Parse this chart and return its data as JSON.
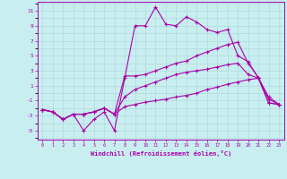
{
  "xlabel": "Windchill (Refroidissement éolien,°C)",
  "background_color": "#c8eef0",
  "grid_color": "#b0d8dc",
  "line_color": "#aa00aa",
  "x_values": [
    0,
    1,
    2,
    3,
    4,
    5,
    6,
    7,
    8,
    9,
    10,
    11,
    12,
    13,
    14,
    15,
    16,
    17,
    18,
    19,
    20,
    21,
    22,
    23
  ],
  "line1": [
    -2.2,
    -2.5,
    -3.5,
    -2.8,
    -5.0,
    -3.5,
    -2.5,
    -5.0,
    2.0,
    9.0,
    9.0,
    11.5,
    9.2,
    9.0,
    10.2,
    9.5,
    8.5,
    8.1,
    8.5,
    5.0,
    4.2,
    2.0,
    -1.3,
    -1.5
  ],
  "line2": [
    -2.2,
    -2.5,
    -3.5,
    -2.8,
    -2.8,
    -2.5,
    -2.0,
    -2.8,
    2.3,
    2.3,
    2.5,
    3.0,
    3.5,
    4.0,
    4.3,
    5.0,
    5.5,
    6.0,
    6.5,
    6.8,
    4.0,
    2.1,
    -0.8,
    -1.5
  ],
  "line3": [
    -2.2,
    -2.5,
    -3.5,
    -2.8,
    -2.8,
    -2.5,
    -2.0,
    -2.8,
    -0.5,
    0.5,
    1.0,
    1.5,
    2.0,
    2.5,
    2.8,
    3.0,
    3.2,
    3.5,
    3.8,
    4.0,
    2.5,
    2.0,
    -0.5,
    -1.5
  ],
  "line4": [
    -2.2,
    -2.5,
    -3.5,
    -2.8,
    -2.8,
    -2.5,
    -2.0,
    -2.8,
    -1.8,
    -1.5,
    -1.2,
    -1.0,
    -0.8,
    -0.5,
    -0.3,
    0.0,
    0.5,
    0.8,
    1.2,
    1.5,
    1.8,
    2.0,
    -1.3,
    -1.5
  ],
  "ylim": [
    -6.2,
    12.2
  ],
  "xlim": [
    -0.5,
    23.5
  ],
  "yticks": [
    -5,
    -3,
    -1,
    1,
    3,
    5,
    7,
    9,
    11
  ],
  "xticks": [
    0,
    1,
    2,
    3,
    4,
    5,
    6,
    7,
    8,
    9,
    10,
    11,
    12,
    13,
    14,
    15,
    16,
    17,
    18,
    19,
    20,
    21,
    22,
    23
  ]
}
